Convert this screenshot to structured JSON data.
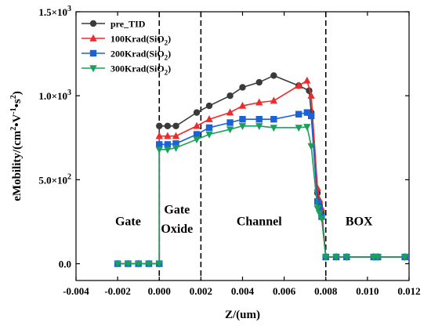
{
  "chart_data": {
    "type": "line",
    "xlabel": "Z/(um)",
    "ylabel_main": "eMobility/(cm",
    "ylabel_sup1": "2",
    "ylabel_mid": "•V",
    "ylabel_sup2": "-1",
    "ylabel_end": "•s",
    "ylabel_sup3": "2",
    "ylabel_close": ")",
    "xlim": [
      -0.004,
      0.012
    ],
    "ylim": [
      -100,
      1500
    ],
    "x_ticks": [
      -0.004,
      -0.002,
      0.0,
      0.002,
      0.004,
      0.006,
      0.008,
      0.01,
      0.012
    ],
    "x_tick_labels": [
      "-0.004",
      "-0.002",
      "0.000",
      "0.002",
      "0.004",
      "0.006",
      "0.008",
      "0.010",
      "0.012"
    ],
    "y_ticks": [
      0,
      500,
      1000,
      1500
    ],
    "y_tick_labels": [
      {
        "base": "0.0",
        "exp": ""
      },
      {
        "base": "5.0×10",
        "exp": "2"
      },
      {
        "base": "1.0×10",
        "exp": "3"
      },
      {
        "base": "1.5×10",
        "exp": "3"
      }
    ],
    "grid": false,
    "legend_position": "top-left",
    "region_boundaries": [
      0.0,
      0.002,
      0.008
    ],
    "regions": [
      {
        "label": "Gate",
        "x": -0.0015,
        "y": 230
      },
      {
        "label": "Gate",
        "x": 0.00085,
        "y": 300
      },
      {
        "label": "Oxide",
        "x": 0.00085,
        "y": 185
      },
      {
        "label": "Channel",
        "x": 0.0048,
        "y": 230
      },
      {
        "label": "BOX",
        "x": 0.0096,
        "y": 230
      }
    ],
    "series": [
      {
        "name": "pre_TID",
        "name_sub": "",
        "color": "#3a3a3a",
        "marker": "circle",
        "x": [
          -0.002,
          -0.0015,
          -0.001,
          -0.0005,
          0.0,
          0.0,
          0.0004,
          0.0008,
          0.0018,
          0.0024,
          0.0034,
          0.004,
          0.0048,
          0.0055,
          0.0067,
          0.0072,
          0.0073,
          0.0076,
          0.0077,
          0.0078,
          0.008,
          0.0085,
          0.009,
          0.0103,
          0.0105,
          0.0118
        ],
        "y": [
          0,
          0,
          0,
          0,
          0,
          820,
          820,
          820,
          900,
          940,
          1000,
          1050,
          1080,
          1120,
          1060,
          1030,
          900,
          420,
          350,
          300,
          40,
          40,
          40,
          40,
          40,
          40
        ]
      },
      {
        "name": "100Krad(SiO",
        "name_sub": "2",
        "name_end": ")",
        "color": "#ee2a2a",
        "marker": "triangle-up",
        "x": [
          -0.002,
          -0.0015,
          -0.001,
          -0.0005,
          0.0,
          0.0,
          0.0004,
          0.0008,
          0.0018,
          0.0024,
          0.0034,
          0.004,
          0.0048,
          0.0055,
          0.0067,
          0.0071,
          0.0073,
          0.0076,
          0.0077,
          0.0078,
          0.008,
          0.0085,
          0.009,
          0.0103,
          0.0105,
          0.0118
        ],
        "y": [
          0,
          0,
          0,
          0,
          0,
          760,
          760,
          760,
          820,
          860,
          900,
          940,
          960,
          970,
          1060,
          1090,
          1000,
          450,
          380,
          330,
          40,
          40,
          40,
          40,
          40,
          40
        ]
      },
      {
        "name": "200Krad(SiO",
        "name_sub": "2",
        "name_end": ")",
        "color": "#1a63d6",
        "marker": "square",
        "x": [
          -0.002,
          -0.0015,
          -0.001,
          -0.0005,
          0.0,
          0.0,
          0.0004,
          0.0008,
          0.0018,
          0.0024,
          0.0034,
          0.004,
          0.0048,
          0.0055,
          0.0067,
          0.0071,
          0.0073,
          0.0076,
          0.0077,
          0.0078,
          0.008,
          0.0085,
          0.009,
          0.0103,
          0.0105,
          0.0118
        ],
        "y": [
          0,
          0,
          0,
          0,
          0,
          710,
          710,
          715,
          770,
          810,
          840,
          860,
          860,
          860,
          890,
          900,
          880,
          370,
          330,
          280,
          40,
          40,
          40,
          40,
          40,
          40
        ]
      },
      {
        "name": "300Krad(SiO",
        "name_sub": "2",
        "name_end": ")",
        "color": "#1aa05a",
        "marker": "triangle-down",
        "x": [
          -0.002,
          -0.0015,
          -0.001,
          -0.0005,
          0.0,
          0.0,
          0.0004,
          0.0008,
          0.0018,
          0.0024,
          0.0034,
          0.004,
          0.0048,
          0.0055,
          0.0067,
          0.0071,
          0.0073,
          0.0076,
          0.0077,
          0.0078,
          0.008,
          0.0085,
          0.009,
          0.0103,
          0.0105,
          0.0118
        ],
        "y": [
          0,
          0,
          0,
          0,
          0,
          680,
          680,
          690,
          740,
          770,
          800,
          820,
          820,
          810,
          810,
          815,
          700,
          330,
          300,
          270,
          40,
          40,
          40,
          40,
          40,
          40
        ]
      }
    ]
  }
}
